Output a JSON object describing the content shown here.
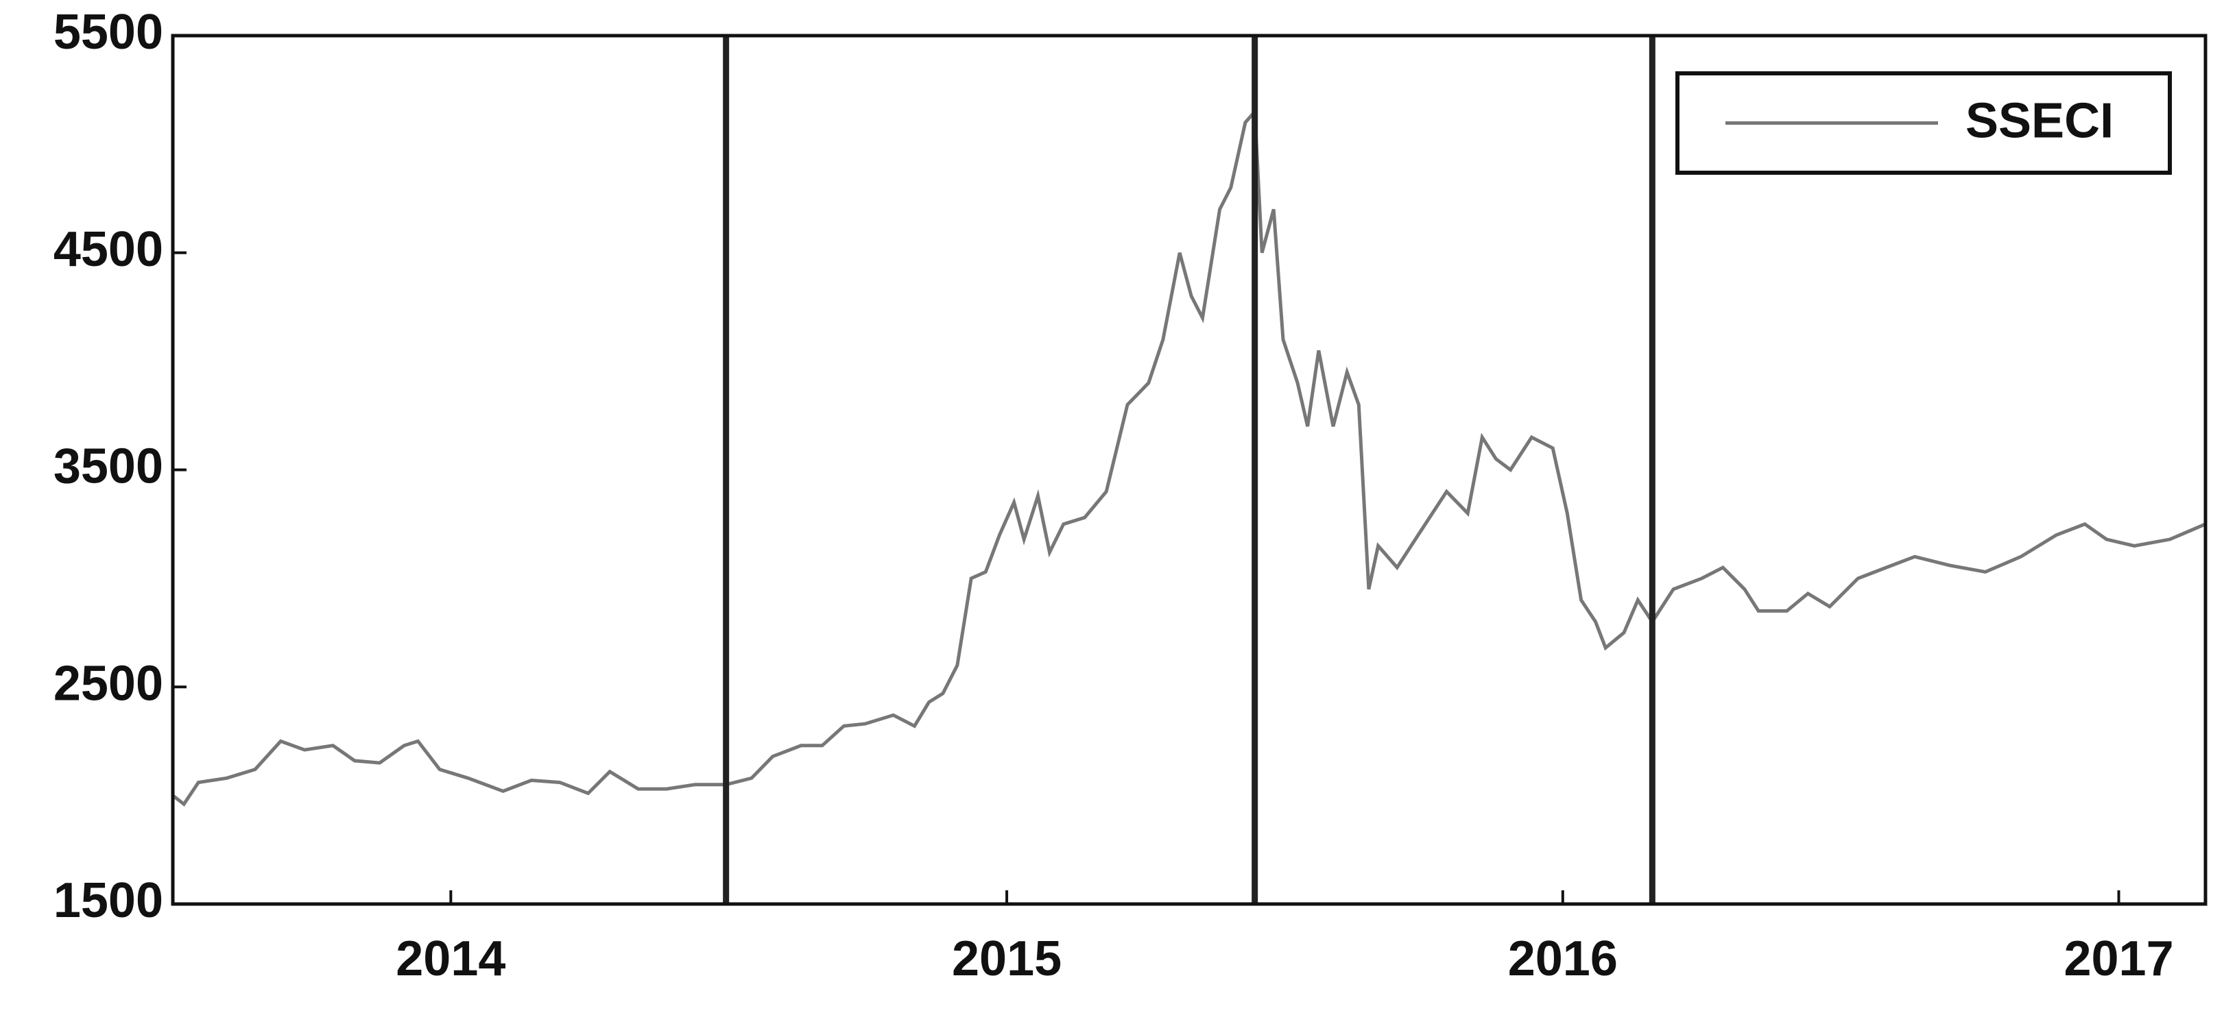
{
  "chart_data": {
    "type": "line",
    "x": [
      2013.5,
      2013.52,
      2013.546,
      2013.597,
      2013.648,
      2013.694,
      2013.737,
      2013.788,
      2013.827,
      2013.872,
      2013.916,
      2013.941,
      2013.98,
      2014.031,
      2014.094,
      2014.145,
      2014.196,
      2014.247,
      2014.286,
      2014.337,
      2014.388,
      2014.439,
      2014.495,
      2014.541,
      2014.579,
      2014.63,
      2014.668,
      2014.707,
      2014.745,
      2014.796,
      2014.834,
      2014.86,
      2014.885,
      2014.911,
      2014.936,
      2014.962,
      2014.987,
      2015.013,
      2015.031,
      2015.056,
      2015.077,
      2015.102,
      2015.14,
      2015.179,
      2015.217,
      2015.255,
      2015.281,
      2015.311,
      2015.332,
      2015.352,
      2015.383,
      2015.403,
      2015.429,
      2015.446,
      2015.459,
      2015.48,
      2015.497,
      2015.523,
      2015.541,
      2015.561,
      2015.587,
      2015.612,
      2015.633,
      2015.651,
      2015.668,
      2015.702,
      2015.74,
      2015.791,
      2015.829,
      2015.855,
      2015.88,
      2015.906,
      2015.944,
      2015.982,
      2016.008,
      2016.033,
      2016.059,
      2016.077,
      2016.11,
      2016.135,
      2016.161,
      2016.199,
      2016.25,
      2016.288,
      2016.327,
      2016.352,
      2016.403,
      2016.441,
      2016.48,
      2016.531,
      2016.582,
      2016.633,
      2016.696,
      2016.76,
      2016.824,
      2016.888,
      2016.939,
      2016.978,
      2017.028,
      2017.092,
      2017.156
    ],
    "series": [
      {
        "name": "SSECI",
        "color": "#777777",
        "values": [
          2000,
          1960,
          2060,
          2080,
          2120,
          2250,
          2210,
          2230,
          2160,
          2150,
          2230,
          2250,
          2120,
          2080,
          2020,
          2070,
          2060,
          2010,
          2110,
          2030,
          2030,
          2050,
          2050,
          2080,
          2180,
          2230,
          2230,
          2320,
          2330,
          2370,
          2320,
          2430,
          2470,
          2600,
          3000,
          3030,
          3200,
          3350,
          3180,
          3380,
          3120,
          3250,
          3280,
          3400,
          3800,
          3900,
          4100,
          4500,
          4300,
          4200,
          4700,
          4800,
          5100,
          5150,
          4500,
          4700,
          4100,
          3900,
          3700,
          4050,
          3700,
          3950,
          3800,
          2950,
          3150,
          3050,
          3200,
          3400,
          3300,
          3650,
          3550,
          3500,
          3650,
          3600,
          3300,
          2900,
          2800,
          2680,
          2750,
          2900,
          2800,
          2950,
          3000,
          3050,
          2950,
          2850,
          2850,
          2930,
          2870,
          3000,
          3050,
          3100,
          3060,
          3030,
          3100,
          3200,
          3250,
          3180,
          3150,
          3180,
          3250
        ]
      }
    ],
    "xlim": [
      2013.5,
      2017.156
    ],
    "xticks": [
      2014,
      2015,
      2016,
      2017
    ],
    "ylim": [
      1500,
      5500
    ],
    "yticks": [
      1500,
      2500,
      3500,
      4500,
      5500
    ],
    "vlines": [
      2014.495,
      2015.446,
      2016.161
    ],
    "vline_color": "#222222",
    "legend": "upper right"
  }
}
